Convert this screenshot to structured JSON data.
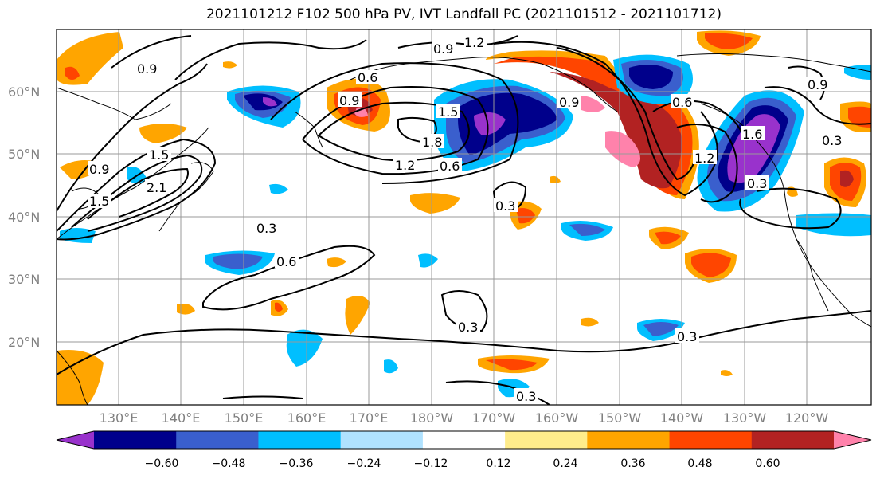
{
  "title": "2021101212 F102 500 hPa PV, IVT Landfall PC (2021101512 - 2021101712)",
  "map": {
    "lon_labels": [
      "130°E",
      "140°E",
      "150°E",
      "160°E",
      "170°E",
      "180°W",
      "170°W",
      "160°W",
      "150°W",
      "140°W",
      "130°W",
      "120°W"
    ],
    "lat_labels": [
      "60°N",
      "50°N",
      "40°N",
      "30°N",
      "20°N"
    ],
    "gridlines": true,
    "contour_labels": [
      "0.9",
      "1.2",
      "0.9",
      "0.6",
      "0.9",
      "1.5",
      "1.8",
      "1.2",
      "0.6",
      "0.9",
      "0.6",
      "1.5",
      "2.1",
      "0.9",
      "1.5",
      "0.3",
      "0.6",
      "0.3",
      "0.3",
      "0.3",
      "0.3",
      "1.2",
      "0.3",
      "0.9",
      "0.3",
      "1.6"
    ]
  },
  "colorbar": {
    "labels": [
      "−0.60",
      "−0.48",
      "−0.36",
      "−0.24",
      "−0.12",
      "0.12",
      "0.24",
      "0.36",
      "0.48",
      "0.60"
    ],
    "colors": [
      "#9932CC",
      "#00008B",
      "#3A5FCD",
      "#00BFFF",
      "#B0E2FF",
      "#FFFFFF",
      "#FFEC8B",
      "#FFA500",
      "#FF4500",
      "#B22222",
      "#FF82AB"
    ],
    "extend": "both"
  }
}
